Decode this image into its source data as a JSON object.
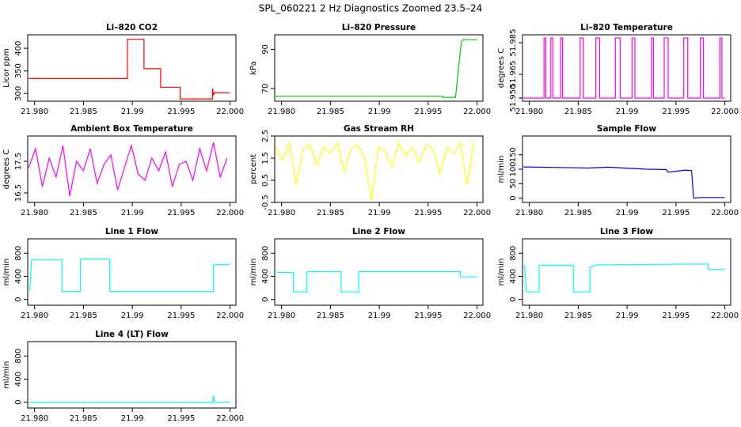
{
  "title": "SPL_060221  2 Hz Diagnostics Zoomed 23.5–24",
  "chart_data": [
    {
      "type": "line",
      "title": "Li–820 CO2",
      "ylabel": "Licor ppm",
      "xlim": [
        21.9793,
        22.0006
      ],
      "ylim": [
        283,
        430
      ],
      "xticks": [
        {
          "value": 21.98,
          "label": "21.980"
        },
        21.985,
        21.99,
        21.995,
        {
          "value": 22,
          "label": "22.000"
        }
      ],
      "yticks": [
        300,
        350,
        400
      ],
      "x": [
        21.9794,
        21.9895,
        21.9895,
        21.9912,
        21.9912,
        21.9929,
        21.9929,
        21.9949,
        21.9949,
        21.9982,
        21.9982,
        21.9983,
        21.9984,
        22.0
      ],
      "series": [
        {
          "color": "#ff0000",
          "values": [
            333,
            333,
            420,
            420,
            355,
            355,
            314,
            314,
            288,
            288,
            312,
            296,
            302,
            301
          ]
        }
      ]
    },
    {
      "type": "line",
      "title": "Li–820 Pressure",
      "ylabel": "kPa",
      "xlim": [
        21.9793,
        22.0006
      ],
      "ylim": [
        63.5,
        97.5
      ],
      "xticks": [
        {
          "value": 21.98,
          "label": "21.980"
        },
        21.985,
        21.99,
        21.995,
        {
          "value": 22,
          "label": "22.000"
        }
      ],
      "yticks": [
        70,
        90
      ],
      "x": [
        21.9794,
        21.9965,
        21.9965,
        21.9978,
        21.9981,
        21.9984,
        21.9986,
        22.0
      ],
      "series": [
        {
          "color": "#00cd00",
          "values": [
            66,
            66,
            65.5,
            65.5,
            80,
            94,
            95,
            95
          ]
        }
      ]
    },
    {
      "type": "line",
      "title": "Li–820 Temperature",
      "ylabel": "degrees C",
      "xlim": [
        21.9793,
        22.0006
      ],
      "ylim": [
        51.948,
        51.99
      ],
      "xticks": [
        {
          "value": 21.98,
          "label": "21.980"
        },
        21.985,
        21.99,
        21.995,
        {
          "value": 22,
          "label": "22.000"
        }
      ],
      "yticks": [
        {
          "value": 51.95,
          "label": "51.950"
        },
        51.965,
        51.985
      ],
      "x": [
        21.9794,
        21.9815,
        21.9815,
        21.9817,
        21.9817,
        21.9822,
        21.9822,
        21.9824,
        21.9824,
        21.9832,
        21.9832,
        21.9834,
        21.9834,
        21.9852,
        21.9852,
        21.9855,
        21.9855,
        21.9868,
        21.9868,
        21.9872,
        21.9872,
        21.9888,
        21.9888,
        21.9893,
        21.9893,
        21.9905,
        21.9905,
        21.9908,
        21.9908,
        21.9925,
        21.9925,
        21.9927,
        21.9927,
        21.9938,
        21.9938,
        21.9942,
        21.9942,
        21.9958,
        21.9958,
        21.9962,
        21.9962,
        21.9975,
        21.9975,
        21.9978,
        21.9978,
        21.9995,
        21.9995,
        21.9997,
        21.9997,
        22.0
      ],
      "series": [
        {
          "color": "#ff00ff",
          "values": [
            51.95,
            51.95,
            51.988,
            51.988,
            51.95,
            51.95,
            51.988,
            51.988,
            51.95,
            51.95,
            51.988,
            51.988,
            51.95,
            51.95,
            51.988,
            51.988,
            51.95,
            51.95,
            51.988,
            51.988,
            51.95,
            51.95,
            51.988,
            51.988,
            51.95,
            51.95,
            51.988,
            51.988,
            51.95,
            51.95,
            51.988,
            51.988,
            51.95,
            51.95,
            51.988,
            51.988,
            51.95,
            51.95,
            51.988,
            51.988,
            51.95,
            51.95,
            51.988,
            51.988,
            51.95,
            51.95,
            51.988,
            51.988,
            51.95,
            51.95
          ]
        }
      ]
    },
    {
      "type": "line",
      "title": "Ambient Box Temperature",
      "ylabel": "degrees C",
      "xlim": [
        21.9793,
        22.0006
      ],
      "ylim": [
        16.2,
        18.3
      ],
      "xticks": [
        {
          "value": 21.98,
          "label": "21.980"
        },
        21.985,
        21.99,
        21.995,
        {
          "value": 22,
          "label": "22.000"
        }
      ],
      "yticks": [
        16.5,
        17.5
      ],
      "x": [
        21.9794,
        21.9801,
        21.9808,
        21.9815,
        21.9822,
        21.9829,
        21.9836,
        21.9843,
        21.985,
        21.9857,
        21.9864,
        21.9871,
        21.9878,
        21.9885,
        21.9892,
        21.9899,
        21.9906,
        21.9913,
        21.992,
        21.9927,
        21.9934,
        21.9941,
        21.9948,
        21.9955,
        21.9962,
        21.9969,
        21.9976,
        21.9983,
        21.999,
        21.9997
      ],
      "series": [
        {
          "color": "#ff00ff",
          "values": [
            17.3,
            17.9,
            16.7,
            17.6,
            17.0,
            18.0,
            16.4,
            17.5,
            17.2,
            17.9,
            16.8,
            17.4,
            17.7,
            16.6,
            17.3,
            18.0,
            17.1,
            16.9,
            17.6,
            17.2,
            17.8,
            16.7,
            17.4,
            17.5,
            16.9,
            17.9,
            17.2,
            18.1,
            17.0,
            17.6
          ]
        }
      ]
    },
    {
      "type": "line",
      "title": "Gas Stream RH",
      "ylabel": "percent",
      "xlim": [
        21.9793,
        22.0006
      ],
      "ylim": [
        -0.5,
        2.5
      ],
      "xticks": [
        {
          "value": 21.98,
          "label": "21.980"
        },
        21.985,
        21.99,
        21.995,
        {
          "value": 22,
          "label": "22.000"
        }
      ],
      "yticks": [
        -0.5,
        0.5,
        1.5,
        2.5
      ],
      "x": [
        21.9794,
        21.9801,
        21.9808,
        21.9815,
        21.9822,
        21.9829,
        21.9836,
        21.9843,
        21.985,
        21.9857,
        21.9864,
        21.9871,
        21.9878,
        21.9885,
        21.9892,
        21.9899,
        21.9906,
        21.9913,
        21.992,
        21.9927,
        21.9934,
        21.9941,
        21.9948,
        21.9955,
        21.9962,
        21.9969,
        21.9976,
        21.9983,
        21.999,
        21.9997
      ],
      "series": [
        {
          "color": "#ffff00",
          "values": [
            2.0,
            1.4,
            2.2,
            0.3,
            1.9,
            2.1,
            1.2,
            2.0,
            1.7,
            2.2,
            0.9,
            1.9,
            2.1,
            1.5,
            -0.4,
            2.0,
            1.8,
            1.1,
            2.2,
            1.6,
            2.0,
            1.3,
            2.1,
            1.9,
            0.8,
            2.0,
            1.7,
            2.2,
            0.3,
            2.3
          ]
        }
      ]
    },
    {
      "type": "line",
      "title": "Sample Flow",
      "ylabel": "ml/min",
      "xlim": [
        21.9793,
        22.0006
      ],
      "ylim": [
        -15,
        215
      ],
      "xticks": [
        {
          "value": 21.98,
          "label": "21.980"
        },
        21.985,
        21.99,
        21.995,
        {
          "value": 22,
          "label": "22.000"
        }
      ],
      "yticks": [
        0,
        50,
        100,
        150
      ],
      "x": [
        21.9794,
        21.983,
        21.986,
        21.988,
        21.992,
        21.994,
        21.9942,
        21.996,
        21.9966,
        21.9968,
        21.9975,
        22.0
      ],
      "series": [
        {
          "color": "#0000ff",
          "values": [
            108,
            106,
            104,
            107,
            100,
            99,
            90,
            97,
            95,
            0,
            2,
            2
          ]
        }
      ]
    },
    {
      "type": "line",
      "title": "Line 1 Flow",
      "ylabel": "ml/min",
      "xlim": [
        21.9793,
        22.0006
      ],
      "ylim": [
        -100,
        1050
      ],
      "xticks": [
        {
          "value": 21.98,
          "label": "21.980"
        },
        21.985,
        21.99,
        21.995,
        {
          "value": 22,
          "label": "22.000"
        }
      ],
      "yticks": [
        0,
        400,
        800
      ],
      "x": [
        21.9795,
        21.9797,
        21.9828,
        21.9828,
        21.9847,
        21.9847,
        21.9877,
        21.9877,
        21.9983,
        21.9983,
        22.0
      ],
      "series": [
        {
          "color": "#00ffff",
          "values": [
            150,
            690,
            690,
            140,
            140,
            700,
            700,
            140,
            140,
            600,
            610
          ]
        }
      ]
    },
    {
      "type": "line",
      "title": "Line 2 Flow",
      "ylabel": "ml/min",
      "xlim": [
        21.9793,
        22.0006
      ],
      "ylim": [
        -100,
        1050
      ],
      "xticks": [
        {
          "value": 21.98,
          "label": "21.980"
        },
        21.985,
        21.99,
        21.995,
        {
          "value": 22,
          "label": "22.000"
        }
      ],
      "yticks": [
        0,
        400,
        800
      ],
      "x": [
        21.9795,
        21.9812,
        21.9812,
        21.9826,
        21.9826,
        21.9861,
        21.9861,
        21.9879,
        21.9879,
        21.9983,
        21.9983,
        22.0
      ],
      "series": [
        {
          "color": "#00ffff",
          "values": [
            470,
            470,
            130,
            130,
            480,
            480,
            130,
            130,
            480,
            480,
            390,
            390
          ]
        }
      ]
    },
    {
      "type": "line",
      "title": "Line 3 Flow",
      "ylabel": "ml/min",
      "xlim": [
        21.9793,
        22.0006
      ],
      "ylim": [
        -100,
        1050
      ],
      "xticks": [
        {
          "value": 21.98,
          "label": "21.980"
        },
        21.985,
        21.99,
        21.995,
        {
          "value": 22,
          "label": "22.000"
        }
      ],
      "yticks": [
        0,
        400,
        800
      ],
      "x": [
        21.9795,
        21.9797,
        21.981,
        21.981,
        21.9845,
        21.9845,
        21.9862,
        21.9862,
        21.987,
        21.9983,
        21.9983,
        22.0
      ],
      "series": [
        {
          "color": "#00ffff",
          "values": [
            600,
            130,
            130,
            590,
            590,
            130,
            130,
            560,
            600,
            615,
            520,
            525
          ]
        }
      ]
    },
    {
      "type": "line",
      "title": "Line 4 (LT) Flow",
      "ylabel": "ml/min",
      "xlim": [
        21.9793,
        22.0006
      ],
      "ylim": [
        -100,
        1050
      ],
      "xticks": [
        {
          "value": 21.98,
          "label": "21.980"
        },
        21.985,
        21.99,
        21.995,
        {
          "value": 22,
          "label": "22.000"
        }
      ],
      "yticks": [
        0,
        400,
        800
      ],
      "x": [
        21.9795,
        21.9982,
        21.9983,
        21.9984,
        22.0
      ],
      "series": [
        {
          "color": "#00ffff",
          "values": [
            0,
            0,
            120,
            5,
            0
          ]
        }
      ]
    }
  ]
}
